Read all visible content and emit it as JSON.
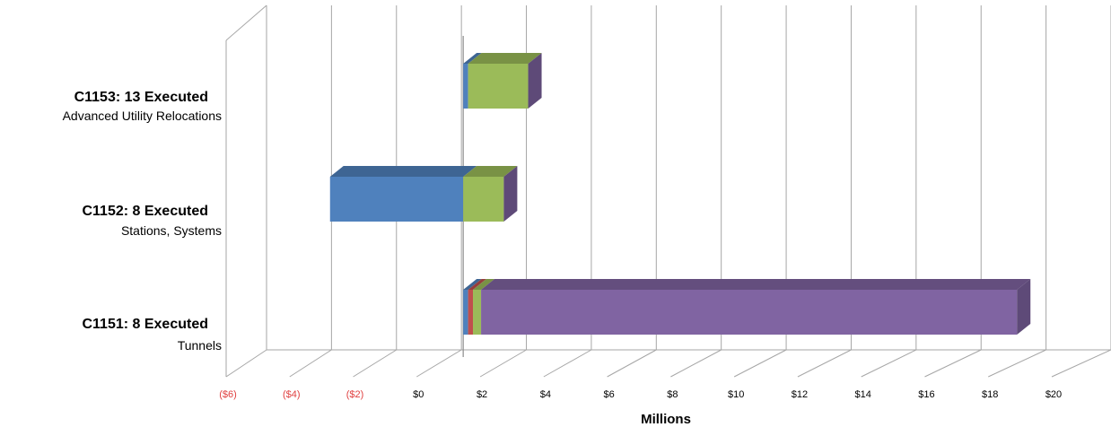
{
  "chart_data": {
    "type": "bar",
    "orientation": "horizontal",
    "stacked": true,
    "three_d": true,
    "title": "",
    "xlabel": "Millions",
    "xlim": [
      -6,
      20
    ],
    "x_ticks": [
      -6,
      -4,
      -2,
      0,
      2,
      4,
      6,
      8,
      10,
      12,
      14,
      16,
      18,
      20
    ],
    "x_tick_labels": [
      "($6)",
      "($4)",
      "($2)",
      "$0",
      "$2",
      "$4",
      "$6",
      "$8",
      "$10",
      "$12",
      "$14",
      "$16",
      "$18",
      "$20"
    ],
    "negative_tick_color": "#e04040",
    "grid": true,
    "categories": [
      {
        "title": "C1153: 13 Executed",
        "subtitle": "Advanced Utility Relocations"
      },
      {
        "title": "C1152: 8 Executed",
        "subtitle": "Stations, Systems"
      },
      {
        "title": "C1151: 8 Executed",
        "subtitle": "Tunnels"
      }
    ],
    "series": [
      {
        "color": "#4f81bd",
        "values": [
          0.15,
          -4.1,
          0.15
        ]
      },
      {
        "color": "#c0504d",
        "values": [
          0.0,
          0.0,
          0.15
        ]
      },
      {
        "color": "#9bbb59",
        "values": [
          1.85,
          1.25,
          0.25
        ]
      },
      {
        "color": "#8064a2",
        "values": [
          0.0,
          0.0,
          16.5
        ]
      }
    ]
  }
}
